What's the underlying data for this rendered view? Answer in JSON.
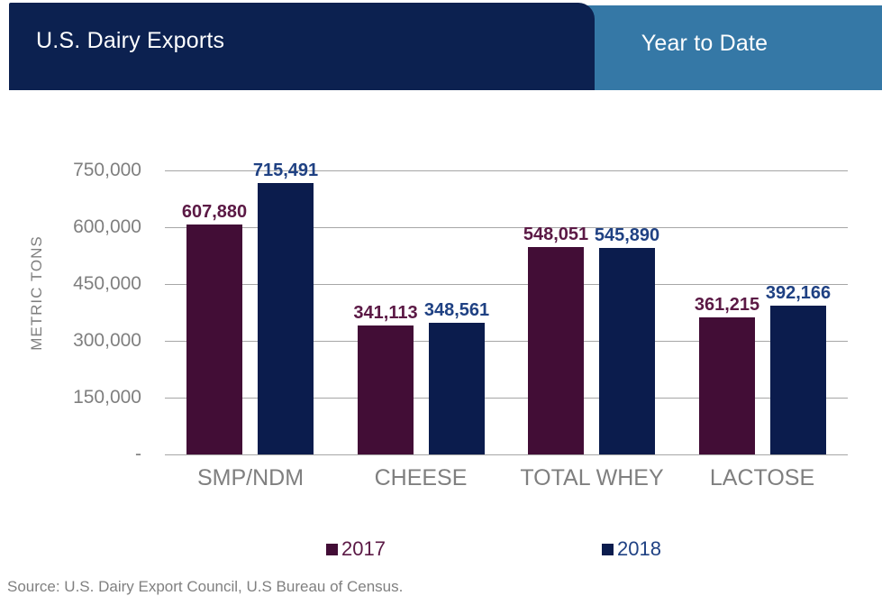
{
  "header": {
    "title": "U.S. Dairy Exports",
    "subtitle": "Year to Date",
    "title_bg_color": "#0C2150",
    "subtitle_bg_color": "#3578A6",
    "text_color": "#FFFFFF"
  },
  "chart_data": {
    "type": "bar",
    "title": "U.S. Dairy Exports — Year to Date",
    "ylabel": "METRIC TONS",
    "xlabel": "",
    "ylim": [
      0,
      750000
    ],
    "grid": true,
    "legend_position": "bottom",
    "categories": [
      "SMP/NDM",
      "CHEESE",
      "TOTAL WHEY",
      "LACTOSE"
    ],
    "series": [
      {
        "name": "2017",
        "color": "#420D36",
        "label_color": "#5B1945",
        "values": [
          607880,
          341113,
          548051,
          361215
        ]
      },
      {
        "name": "2018",
        "color": "#0B1C4D",
        "label_color": "#1F4183",
        "values": [
          715491,
          348561,
          545890,
          392166
        ]
      }
    ],
    "yticks": [
      {
        "value": 0,
        "label": "-"
      },
      {
        "value": 150000,
        "label": "150,000"
      },
      {
        "value": 300000,
        "label": "300,000"
      },
      {
        "value": 450000,
        "label": "450,000"
      },
      {
        "value": 600000,
        "label": "600,000"
      },
      {
        "value": 750000,
        "label": "750,000"
      }
    ],
    "axis_text_color": "#7F7F7F",
    "gridline_color": "#A6A6A6"
  },
  "source": "Source: U.S. Dairy Export Council, U.S Bureau of Census."
}
